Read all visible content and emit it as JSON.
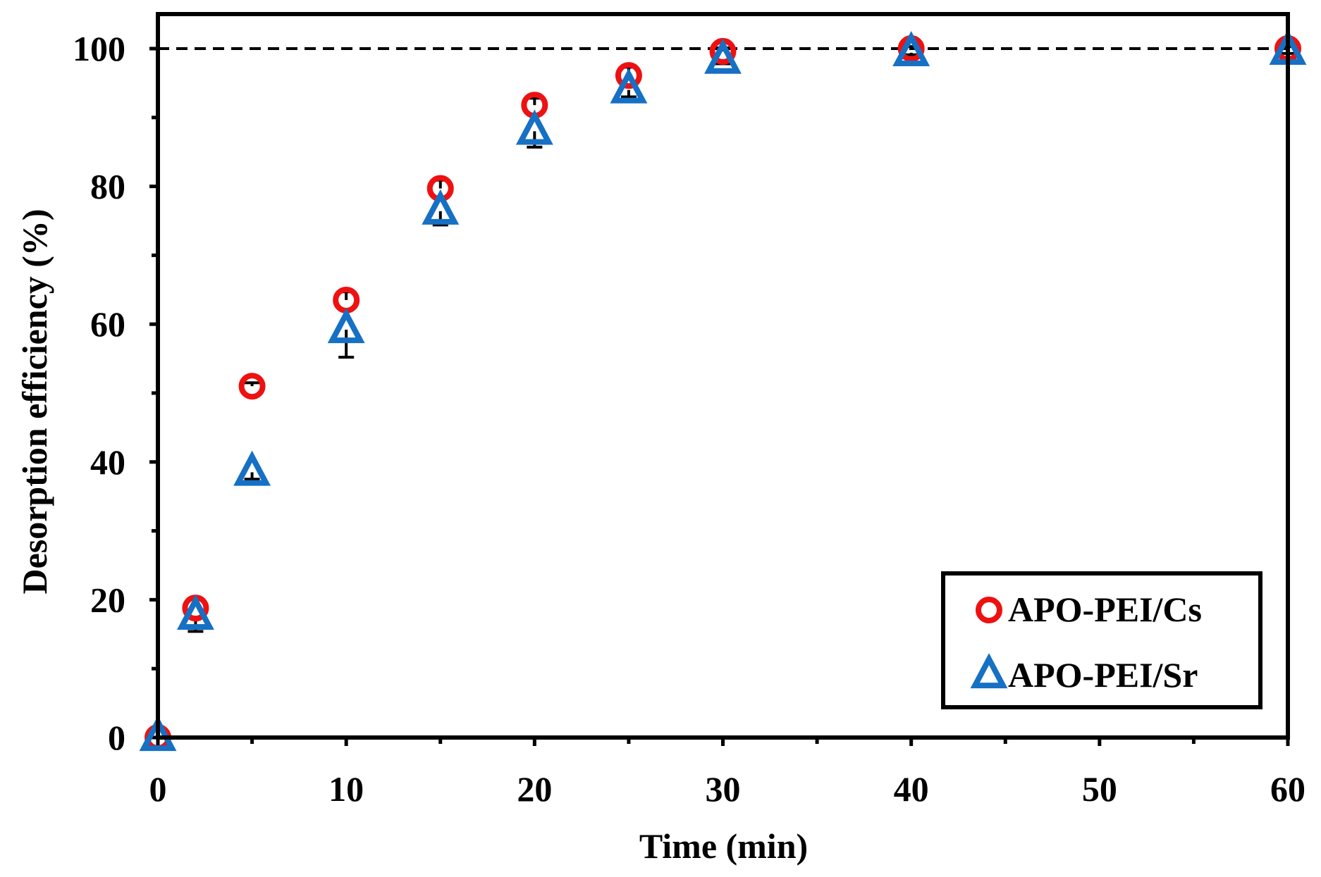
{
  "chart_data": {
    "type": "scatter",
    "title": "",
    "xlabel": "Time (min)",
    "ylabel": "Desorption efficiency (%)",
    "xlim": [
      0,
      60
    ],
    "ylim": [
      0,
      100
    ],
    "x_ticks": [
      0,
      10,
      20,
      30,
      40,
      50,
      60
    ],
    "y_ticks": [
      0,
      20,
      40,
      60,
      80,
      100
    ],
    "x_minor_ticks": [
      5,
      15,
      25,
      35,
      45,
      55
    ],
    "y_minor_ticks": [
      10,
      30,
      50,
      70,
      90
    ],
    "reference_line": {
      "y": 100,
      "style": "dashed"
    },
    "legend_position": "bottom-right",
    "series": [
      {
        "name": "APO-PEI/Cs",
        "marker": "circle",
        "color": "#ee1111",
        "x": [
          0,
          2,
          5,
          10,
          15,
          20,
          25,
          30,
          40,
          60
        ],
        "y": [
          0,
          18.8,
          51.0,
          63.5,
          79.7,
          91.8,
          96.1,
          99.6,
          100,
          100
        ],
        "error": [
          0,
          0,
          0.5,
          1.2,
          1.2,
          1.0,
          1.2,
          0.5,
          0.3,
          0.3
        ]
      },
      {
        "name": "APO-PEI/Sr",
        "marker": "triangle",
        "color": "#1670c4",
        "x": [
          0,
          2,
          5,
          10,
          15,
          20,
          25,
          30,
          40,
          60
        ],
        "y": [
          0,
          17.6,
          38.5,
          59.2,
          76.4,
          88.0,
          94.0,
          98.3,
          99.4,
          99.6
        ],
        "error": [
          0,
          2.2,
          1.0,
          4.0,
          2.0,
          2.3,
          1.0,
          0.5,
          0.3,
          0.3
        ]
      }
    ]
  }
}
